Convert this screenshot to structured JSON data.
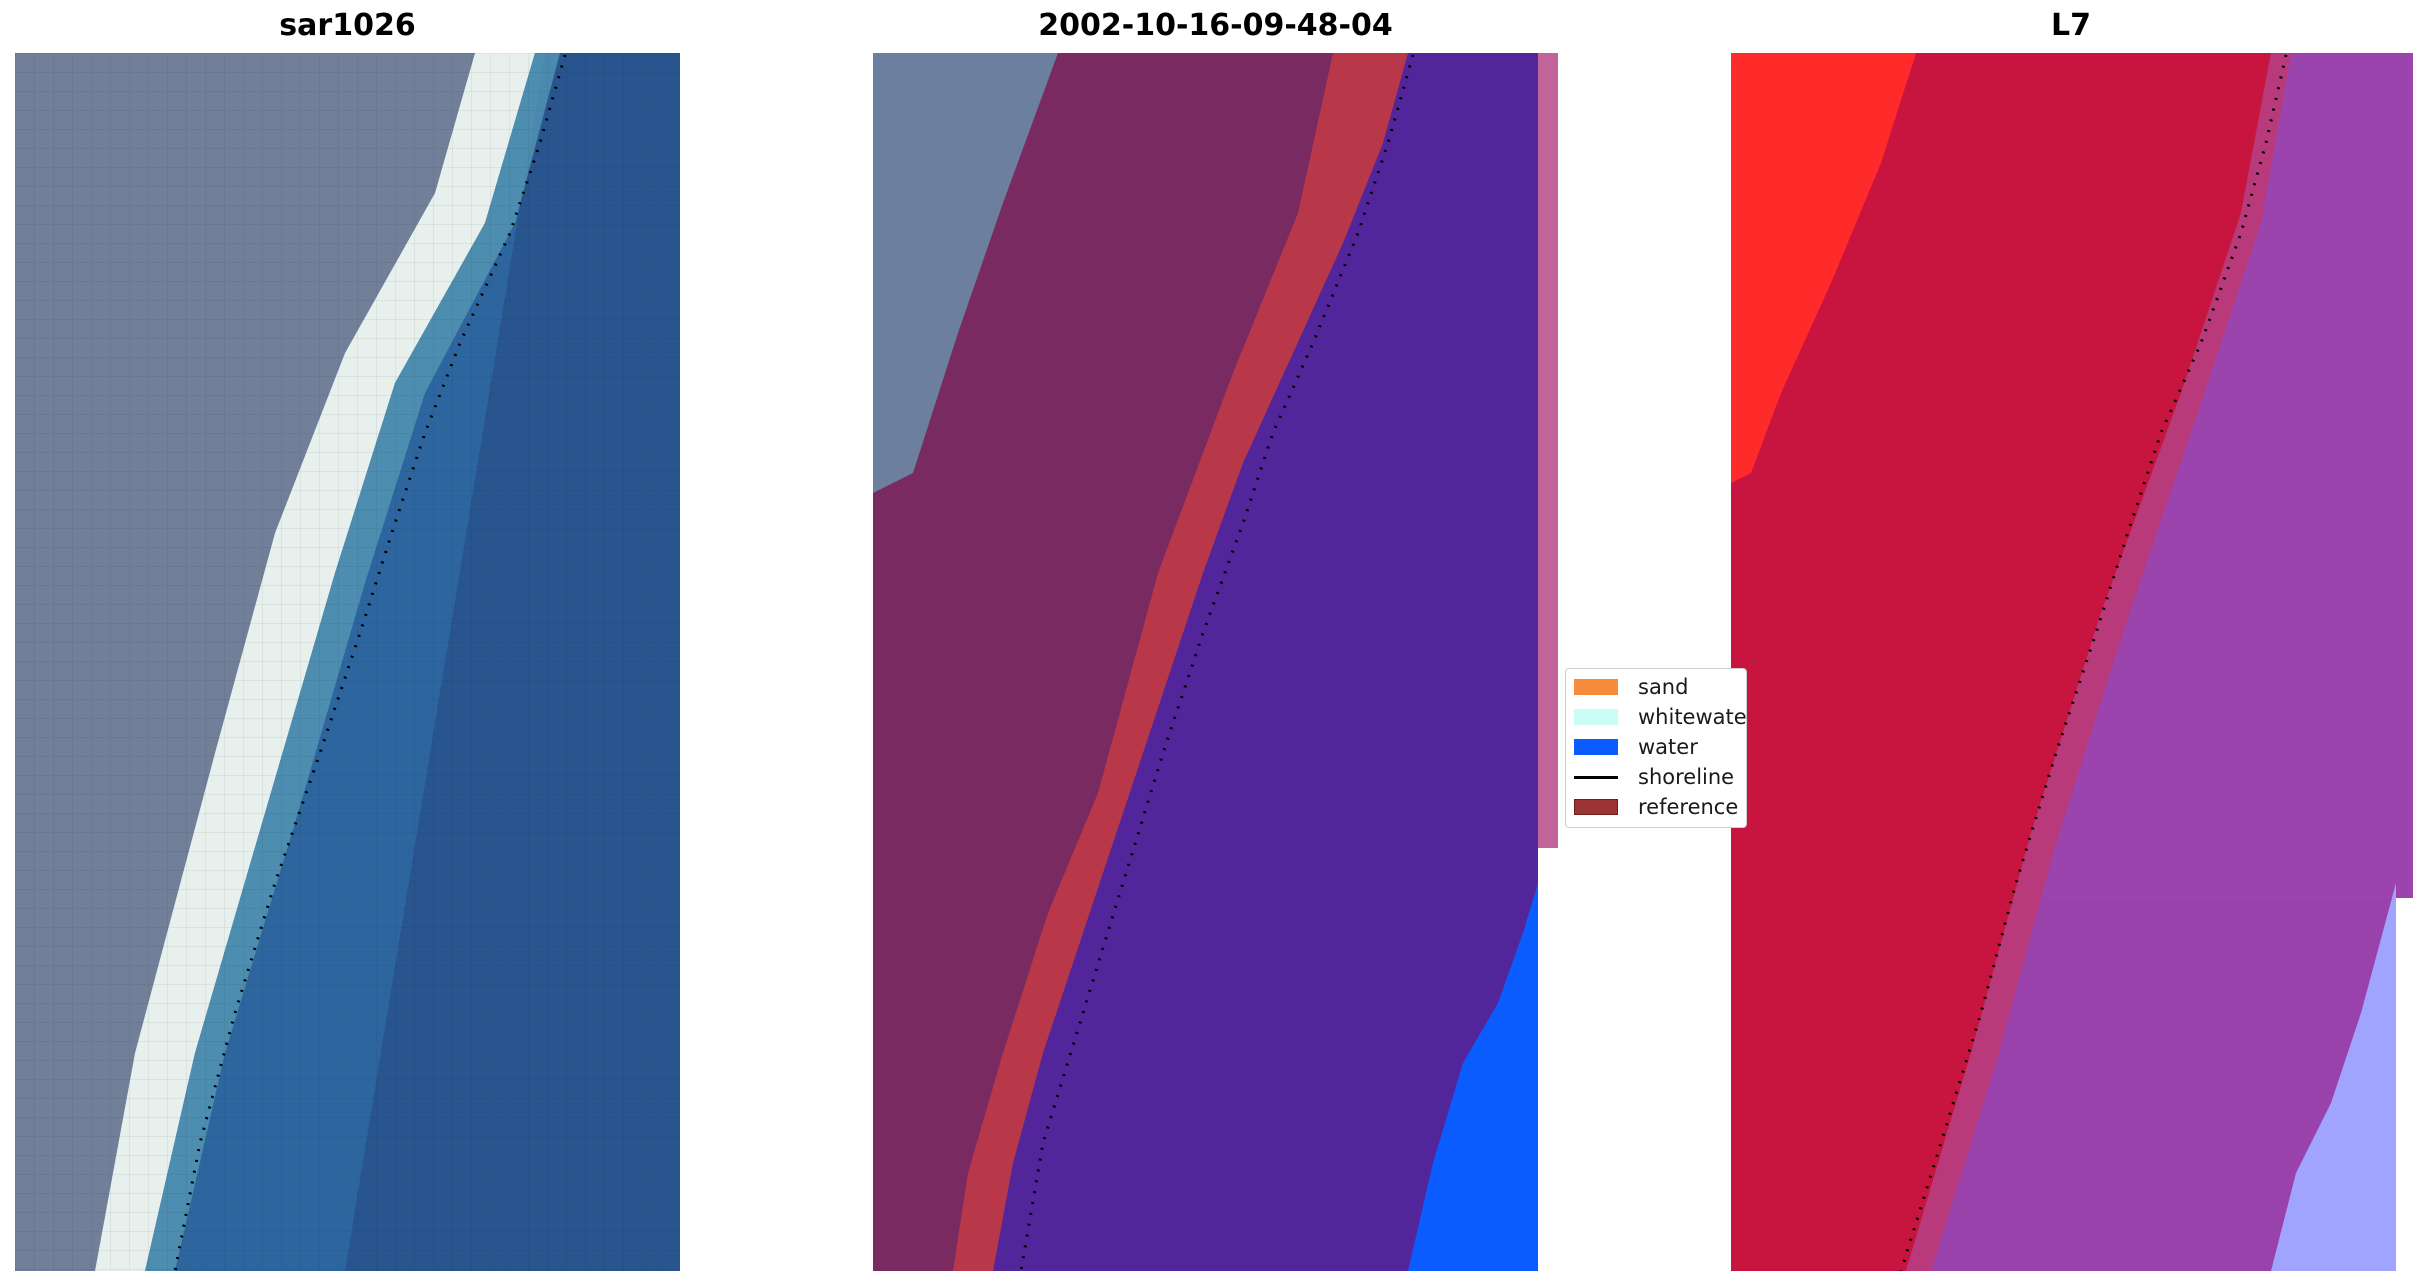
{
  "panels": {
    "rgb_title": "sar1026",
    "classified_title": "2002-10-16-09-48-04",
    "index_title": "L7"
  },
  "legend": {
    "items": [
      {
        "label": "sand",
        "kind": "patch",
        "color": "#f58b3b"
      },
      {
        "label": "whitewater",
        "kind": "patch",
        "color": "#cbfcf5"
      },
      {
        "label": "water",
        "kind": "patch",
        "color": "#0a5cff"
      },
      {
        "label": "shoreline",
        "kind": "line",
        "color": "#000000"
      },
      {
        "label": "reference",
        "kind": "patch",
        "color": "#9c3434"
      }
    ]
  },
  "colors": {
    "land_gray": "#6d7d98",
    "surf_white": "#e8f1ee",
    "sea_blue": "#245f95",
    "deep_blue": "#1f3f78",
    "land_purple": "#7a2b62",
    "reference_red": "#b8384a",
    "water_purple": "#52269a",
    "water_blue": "#0a5cff",
    "strip_pink": "#c2649a",
    "index_bright_red": "#ff2a2a",
    "index_crimson": "#c8143c",
    "index_purple": "#9840a8",
    "index_lavender": "#9ea0ff"
  }
}
